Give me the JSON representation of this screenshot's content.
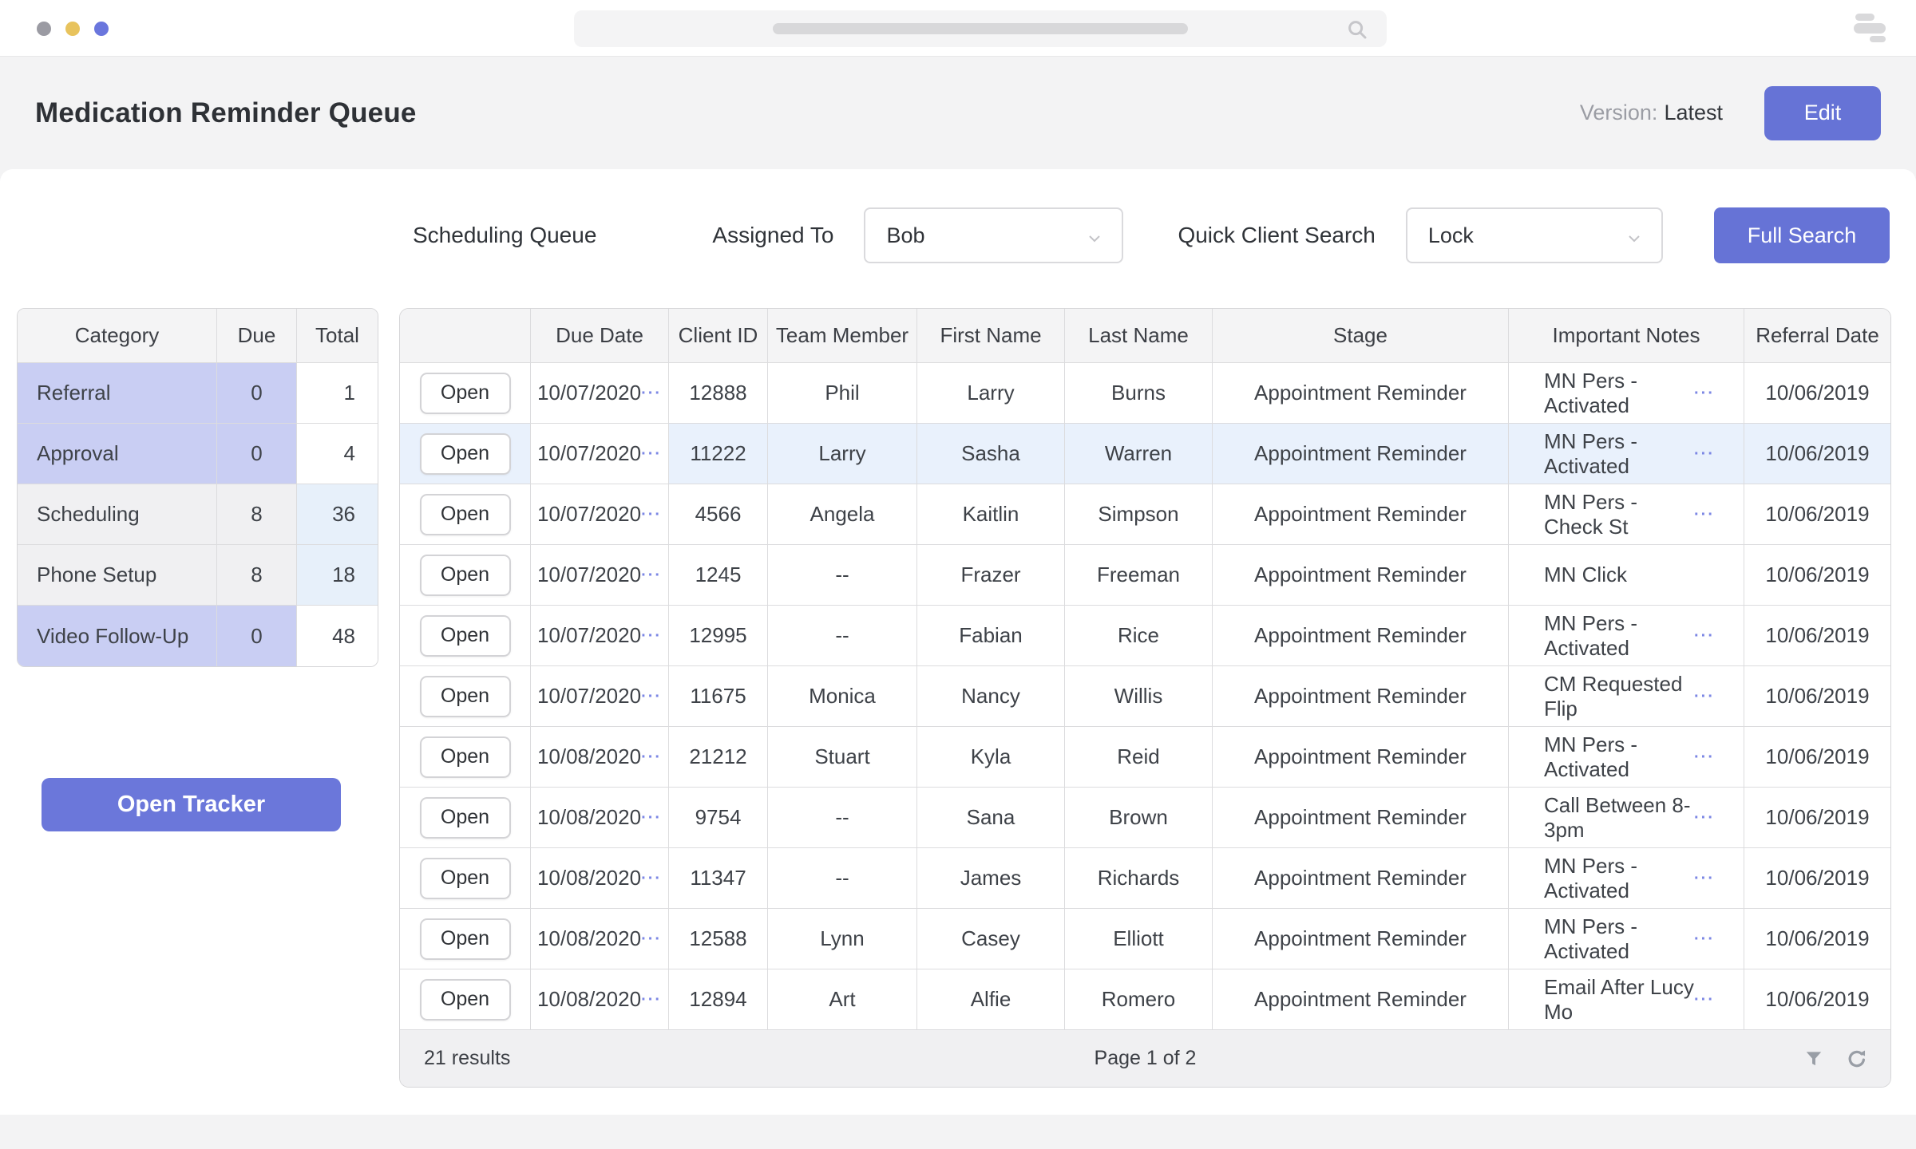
{
  "colors": {
    "accent_purple": "#6673d6",
    "lavender_cell": "#c9cef3",
    "highlight_row": "#e9f1fc",
    "soft_blue_cell": "#e7f0fa",
    "header_gray": "#f4f4f5"
  },
  "browser": {
    "traffic_lights": [
      "gray-dot",
      "yellow-dot",
      "purple-dot"
    ],
    "search_icon": "magnifier",
    "menu_icon": "stacked-bars"
  },
  "header": {
    "title": "Medication Reminder Queue",
    "version_label": "Version:",
    "version_value": "Latest",
    "edit_button": "Edit"
  },
  "filters": {
    "queue_label": "Scheduling Queue",
    "assigned_label": "Assigned To",
    "assigned_value": "Bob",
    "quick_label": "Quick Client Search",
    "quick_value": "Lock",
    "full_search_button": "Full Search"
  },
  "summary_table": {
    "headers": [
      "Category",
      "Due",
      "Total"
    ],
    "rows": [
      {
        "label": "Referral",
        "due": "0",
        "total": "1",
        "tone": "purple",
        "total_tone": "white"
      },
      {
        "label": "Approval",
        "due": "0",
        "total": "4",
        "tone": "purple",
        "total_tone": "white"
      },
      {
        "label": "Scheduling",
        "due": "8",
        "total": "36",
        "tone": "gray",
        "total_tone": "blue"
      },
      {
        "label": "Phone Setup",
        "due": "8",
        "total": "18",
        "tone": "gray",
        "total_tone": "blue"
      },
      {
        "label": "Video Follow-Up",
        "due": "0",
        "total": "48",
        "tone": "purple",
        "total_tone": "white"
      }
    ]
  },
  "tracker": {
    "label": "Open Tracker"
  },
  "queue_table": {
    "headers": [
      "",
      "Due Date",
      "Client ID",
      "Team Member",
      "First Name",
      "Last Name",
      "Stage",
      "Important Notes",
      "Referral Date"
    ],
    "open_label": "Open",
    "more_glyph": "···",
    "rows": [
      {
        "due_date": "10/07/2020",
        "due_tone": "purple",
        "client_id": "12888",
        "team_member": "Phil",
        "first_name": "Larry",
        "last_name": "Burns",
        "stage": "Appointment Reminder",
        "notes": "MN Pers - Activated",
        "notes_more": true,
        "referral_date": "10/06/2019",
        "highlighted": false
      },
      {
        "due_date": "10/07/2020",
        "due_tone": "purple",
        "client_id": "11222",
        "team_member": "Larry",
        "first_name": "Sasha",
        "last_name": "Warren",
        "stage": "Appointment Reminder",
        "notes": "MN Pers - Activated",
        "notes_more": true,
        "referral_date": "10/06/2019",
        "highlighted": true
      },
      {
        "due_date": "10/07/2020",
        "due_tone": "purple",
        "client_id": "4566",
        "team_member": "Angela",
        "first_name": "Kaitlin",
        "last_name": "Simpson",
        "stage": "Appointment Reminder",
        "notes": "MN Pers - Check St",
        "notes_more": true,
        "referral_date": "10/06/2019",
        "highlighted": false
      },
      {
        "due_date": "10/07/2020",
        "due_tone": "purple",
        "client_id": "1245",
        "team_member": "--",
        "first_name": "Frazer",
        "last_name": "Freeman",
        "stage": "Appointment Reminder",
        "notes": "MN Click",
        "notes_more": false,
        "referral_date": "10/06/2019",
        "highlighted": false
      },
      {
        "due_date": "10/07/2020",
        "due_tone": "purple",
        "client_id": "12995",
        "team_member": "--",
        "first_name": "Fabian",
        "last_name": "Rice",
        "stage": "Appointment Reminder",
        "notes": "MN Pers - Activated",
        "notes_more": true,
        "referral_date": "10/06/2019",
        "highlighted": false
      },
      {
        "due_date": "10/07/2020",
        "due_tone": "purple",
        "client_id": "11675",
        "team_member": "Monica",
        "first_name": "Nancy",
        "last_name": "Willis",
        "stage": "Appointment Reminder",
        "notes": "CM Requested Flip",
        "notes_more": true,
        "referral_date": "10/06/2019",
        "highlighted": false
      },
      {
        "due_date": "10/08/2020",
        "due_tone": "gray",
        "client_id": "21212",
        "team_member": "Stuart",
        "first_name": "Kyla",
        "last_name": "Reid",
        "stage": "Appointment Reminder",
        "notes": "MN Pers - Activated",
        "notes_more": true,
        "referral_date": "10/06/2019",
        "highlighted": false
      },
      {
        "due_date": "10/08/2020",
        "due_tone": "gray",
        "client_id": "9754",
        "team_member": "--",
        "first_name": "Sana",
        "last_name": "Brown",
        "stage": "Appointment Reminder",
        "notes": "Call Between 8-3pm",
        "notes_more": true,
        "referral_date": "10/06/2019",
        "highlighted": false
      },
      {
        "due_date": "10/08/2020",
        "due_tone": "gray",
        "client_id": "11347",
        "team_member": "--",
        "first_name": "James",
        "last_name": "Richards",
        "stage": "Appointment Reminder",
        "notes": "MN Pers - Activated",
        "notes_more": true,
        "referral_date": "10/06/2019",
        "highlighted": false
      },
      {
        "due_date": "10/08/2020",
        "due_tone": "gray",
        "client_id": "12588",
        "team_member": "Lynn",
        "first_name": "Casey",
        "last_name": "Elliott",
        "stage": "Appointment Reminder",
        "notes": "MN Pers - Activated",
        "notes_more": true,
        "referral_date": "10/06/2019",
        "highlighted": false
      },
      {
        "due_date": "10/08/2020",
        "due_tone": "gray",
        "client_id": "12894",
        "team_member": "Art",
        "first_name": "Alfie",
        "last_name": "Romero",
        "stage": "Appointment Reminder",
        "notes": "Email After Lucy Mo",
        "notes_more": true,
        "referral_date": "10/06/2019",
        "highlighted": false
      }
    ]
  },
  "footer": {
    "results": "21 results",
    "page": "Page 1 of 2"
  }
}
